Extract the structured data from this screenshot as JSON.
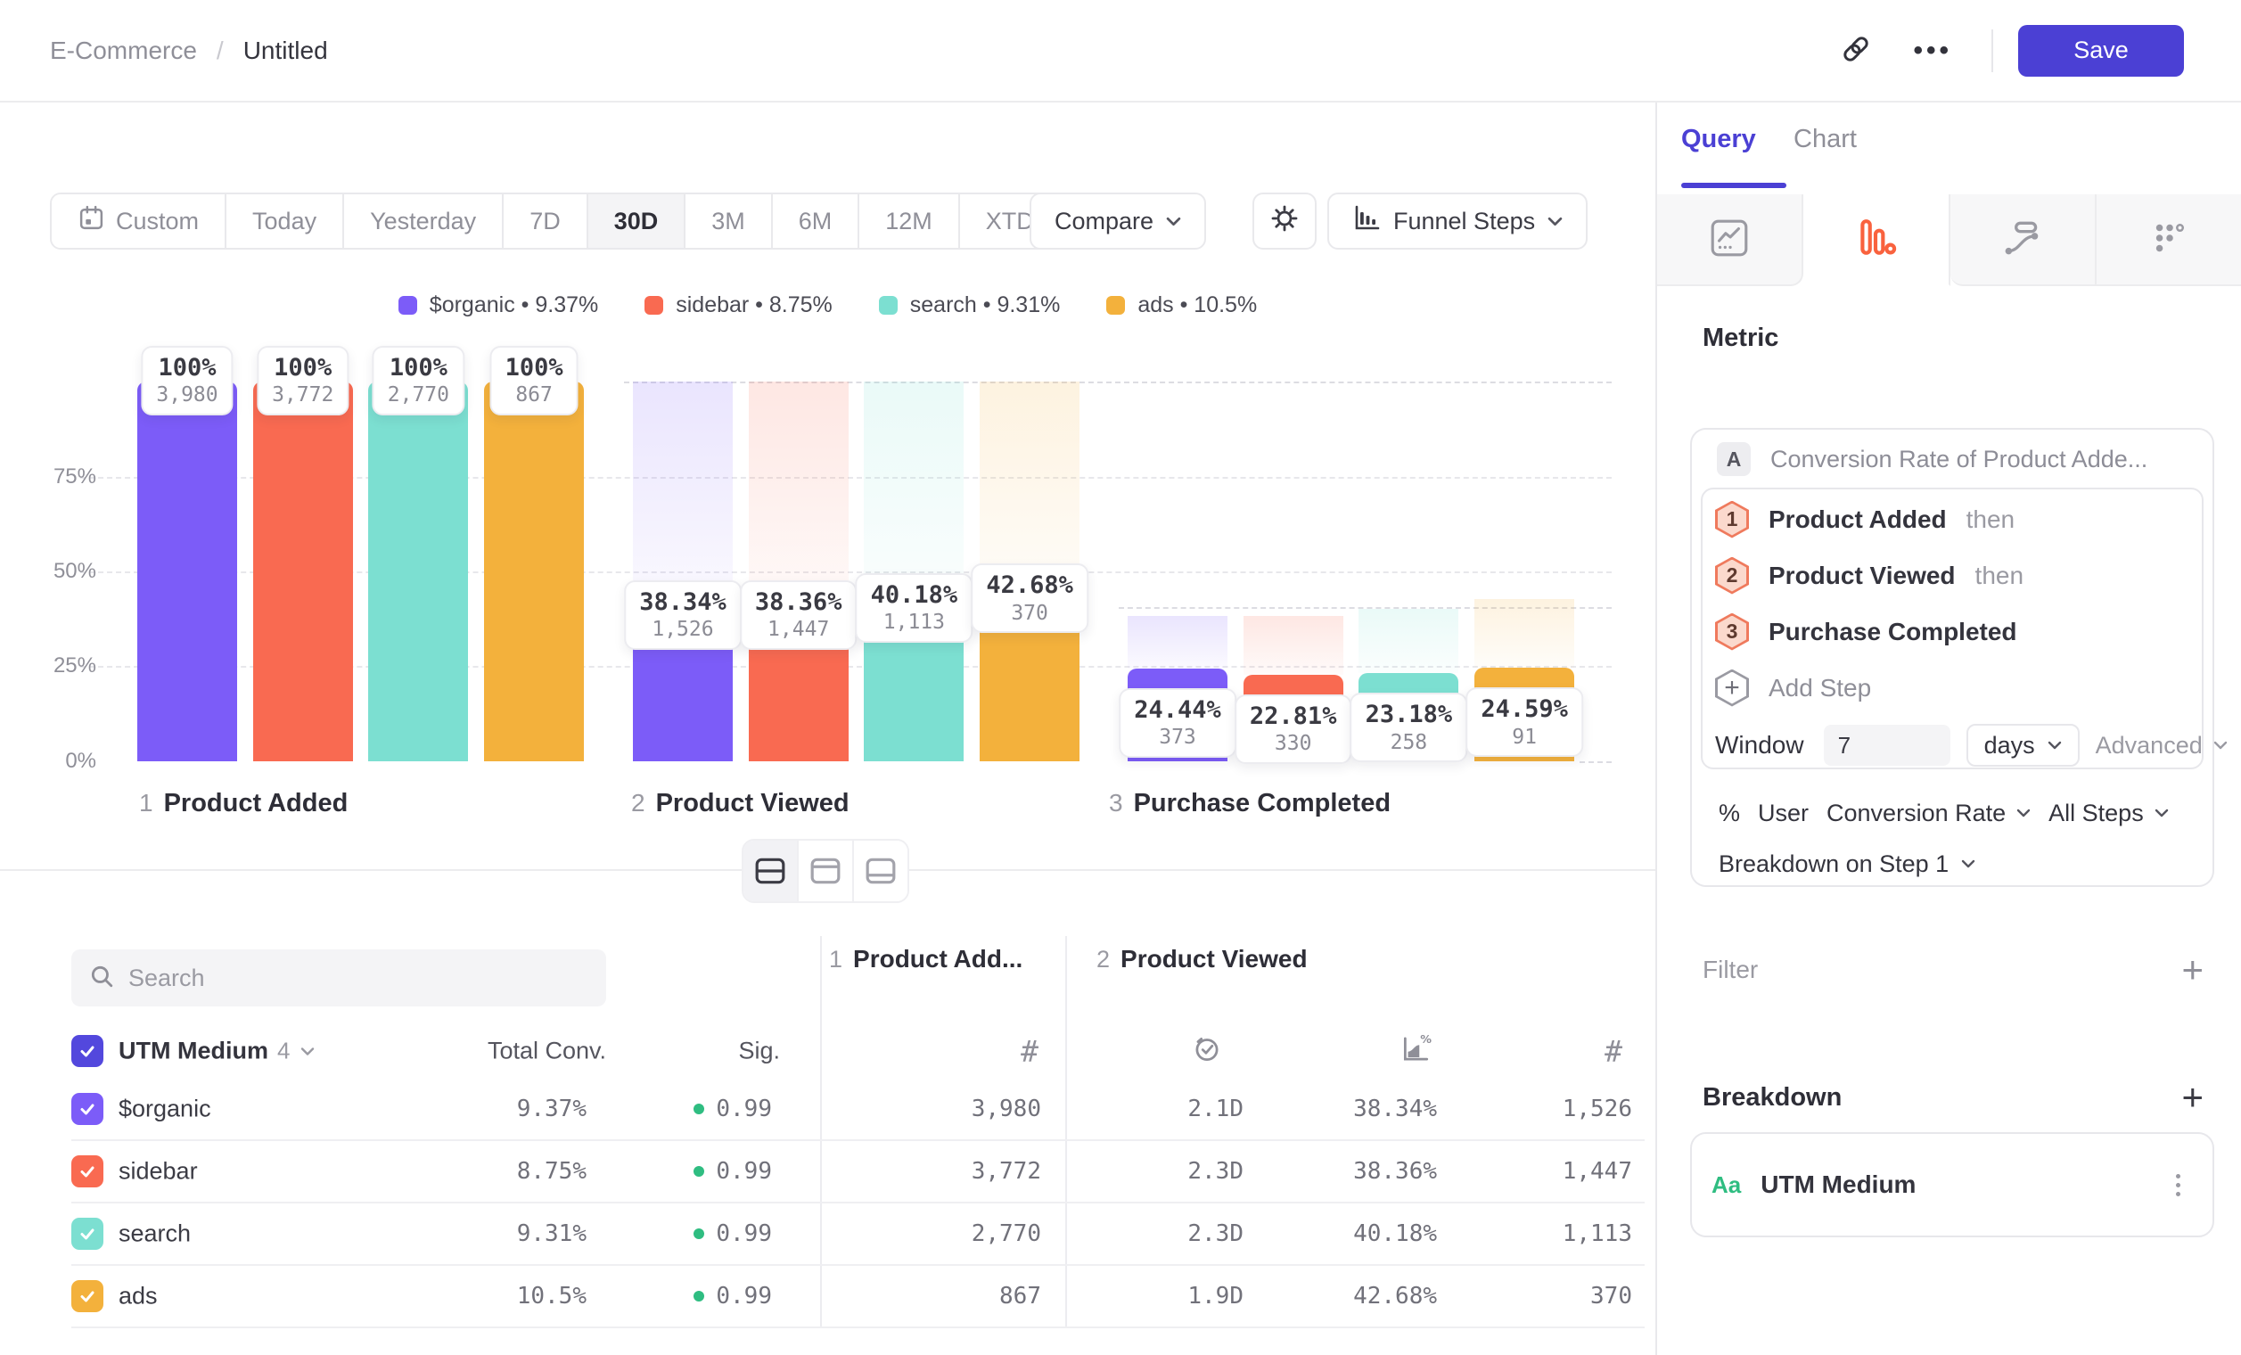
{
  "topbar": {
    "breadcrumb_root": "E-Commerce",
    "breadcrumb_sep": "/",
    "breadcrumb_leaf": "Untitled",
    "save_label": "Save"
  },
  "toolbar": {
    "ranges": [
      {
        "label": "Custom",
        "icon": "calendar",
        "active": false
      },
      {
        "label": "Today",
        "active": false
      },
      {
        "label": "Yesterday",
        "active": false
      },
      {
        "label": "7D",
        "active": false
      },
      {
        "label": "30D",
        "active": true
      },
      {
        "label": "3M",
        "active": false
      },
      {
        "label": "6M",
        "active": false
      },
      {
        "label": "12M",
        "active": false
      },
      {
        "label": "XTD",
        "chevron": true,
        "active": false
      }
    ],
    "compare_label": "Compare",
    "chart_type_label": "Funnel Steps"
  },
  "chart_data": {
    "type": "bar",
    "subtype": "funnel-steps",
    "title": "",
    "categories": [
      "Product Added",
      "Product Viewed",
      "Purchase Completed"
    ],
    "step_numbers": [
      "1",
      "2",
      "3"
    ],
    "y_ticks": [
      "75%",
      "50%",
      "25%",
      "0%"
    ],
    "ylim": [
      0,
      100
    ],
    "grid": "dashed-horizontal",
    "legend_position": "top-center",
    "series": [
      {
        "name": "$organic",
        "color": "#7c5cf8",
        "overall_rate": "9.37%",
        "pcts": [
          100,
          38.34,
          24.44
        ],
        "pct_labels": [
          "100%",
          "38.34%",
          "24.44%"
        ],
        "counts": [
          "3,980",
          "1,526",
          "373"
        ]
      },
      {
        "name": "sidebar",
        "color": "#f96a51",
        "overall_rate": "8.75%",
        "pcts": [
          100,
          38.36,
          22.81
        ],
        "pct_labels": [
          "100%",
          "38.36%",
          "22.81%"
        ],
        "counts": [
          "3,772",
          "1,447",
          "330"
        ]
      },
      {
        "name": "search",
        "color": "#7cdfd1",
        "overall_rate": "9.31%",
        "pcts": [
          100,
          40.18,
          23.18
        ],
        "pct_labels": [
          "100%",
          "40.18%",
          "23.18%"
        ],
        "counts": [
          "2,770",
          "1,113",
          "258"
        ]
      },
      {
        "name": "ads",
        "color": "#f3b13c",
        "overall_rate": "10.5%",
        "pcts": [
          100,
          42.68,
          24.59
        ],
        "pct_labels": [
          "100%",
          "42.68%",
          "24.59%"
        ],
        "counts": [
          "867",
          "370",
          "91"
        ]
      }
    ]
  },
  "table": {
    "search_placeholder": "Search",
    "breakdown_header": "UTM Medium",
    "breakdown_count": "4",
    "col_total": "Total Conv.",
    "col_sig": "Sig.",
    "group1_num": "1",
    "group1_title": "Product Add...",
    "group2_num": "2",
    "group2_title": "Product Viewed",
    "rows": [
      {
        "label": "$organic",
        "color": "#7c5cf8",
        "total": "9.37%",
        "sig": "0.99",
        "step1_count": "3,980",
        "avg_time": "2.1D",
        "rate": "38.34%",
        "step2_count": "1,526"
      },
      {
        "label": "sidebar",
        "color": "#f96a51",
        "total": "8.75%",
        "sig": "0.99",
        "step1_count": "3,772",
        "avg_time": "2.3D",
        "rate": "38.36%",
        "step2_count": "1,447"
      },
      {
        "label": "search",
        "color": "#7cdfd1",
        "total": "9.31%",
        "sig": "0.99",
        "step1_count": "2,770",
        "avg_time": "2.3D",
        "rate": "40.18%",
        "step2_count": "1,113"
      },
      {
        "label": "ads",
        "color": "#f3b13c",
        "total": "10.5%",
        "sig": "0.99",
        "step1_count": "867",
        "avg_time": "1.9D",
        "rate": "42.68%",
        "step2_count": "370"
      }
    ]
  },
  "panel": {
    "tabs": [
      "Query",
      "Chart"
    ],
    "metric_heading": "Metric",
    "metric_letter": "A",
    "metric_title": "Conversion Rate of Product Adde...",
    "steps": [
      {
        "num": "1",
        "label": "Product Added",
        "suffix": "then"
      },
      {
        "num": "2",
        "label": "Product Viewed",
        "suffix": "then"
      },
      {
        "num": "3",
        "label": "Purchase Completed",
        "suffix": ""
      }
    ],
    "add_step_label": "Add Step",
    "window_label": "Window",
    "window_value": "7",
    "window_unit": "days",
    "advanced_label": "Advanced",
    "measure_symbol": "%",
    "measure_entity": "User",
    "measure_metric": "Conversion Rate",
    "measure_scope": "All Steps",
    "breakdown_on": "Breakdown on Step 1",
    "filter_heading": "Filter",
    "breakdown_heading": "Breakdown",
    "breakdown_item_type": "Aa",
    "breakdown_item_name": "UTM Medium"
  },
  "colors": {
    "accent_purple": "#4b40d4",
    "funnel_tab_orange": "#f9623e",
    "sig_green": "#2fbd81",
    "grid": "#e7e7eb"
  }
}
